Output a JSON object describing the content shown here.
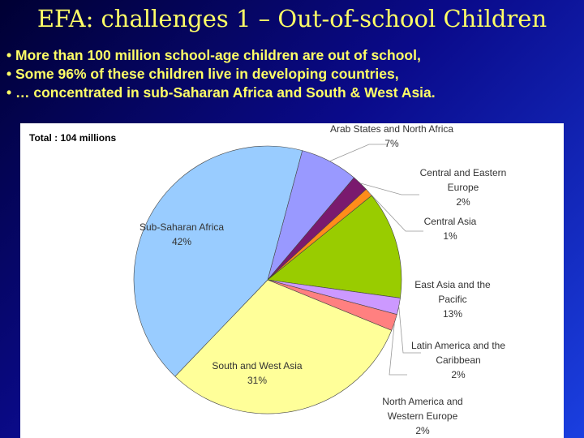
{
  "slide": {
    "title": "EFA: challenges 1 – Out-of-school Children",
    "bullets": [
      "More than 100 million school-age children are out of school,",
      "Some 96% of these children live in developing countries,",
      "… concentrated in sub-Saharan Africa and South & West Asia."
    ]
  },
  "chart_data": {
    "type": "pie",
    "subtitle": "Total : 104 millions",
    "categories": [
      "Arab States and North Africa",
      "Central and Eastern Europe",
      "Central Asia",
      "East Asia and the Pacific",
      "Latin America and the Caribbean",
      "North America and Western Europe",
      "South and West Asia",
      "Sub-Saharan Africa"
    ],
    "values": [
      7,
      2,
      1,
      13,
      2,
      2,
      31,
      42
    ],
    "value_labels": [
      "7%",
      "2%",
      "1%",
      "13%",
      "2%",
      "2%",
      "31%",
      "42%"
    ],
    "colors": [
      "#9999ff",
      "#7a1a6e",
      "#ff8c1a",
      "#99cc00",
      "#cc99ff",
      "#ff8080",
      "#ffff99",
      "#99ccff"
    ]
  }
}
